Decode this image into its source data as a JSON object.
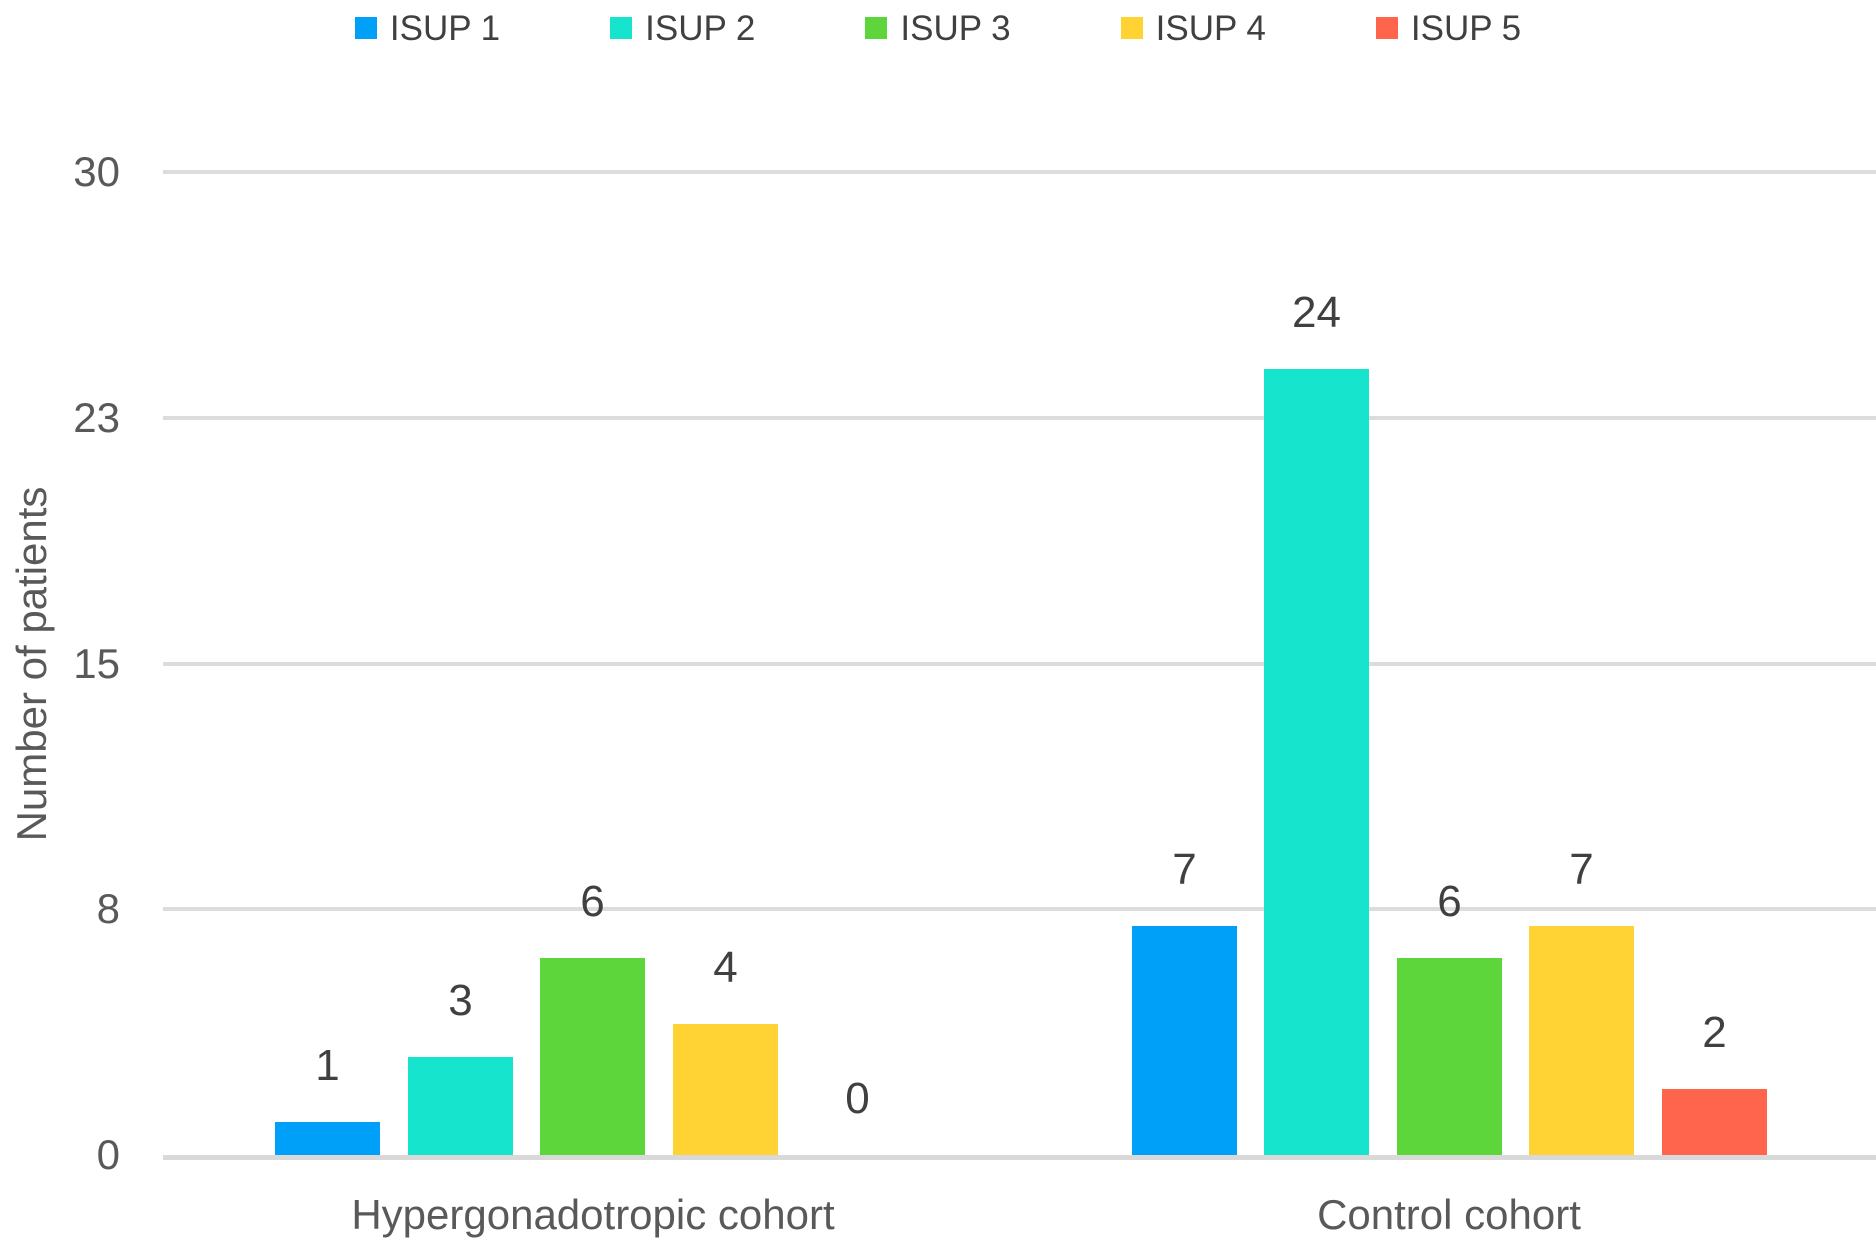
{
  "chart_data": {
    "type": "bar",
    "title": "",
    "xlabel": "",
    "ylabel": "Number of patients",
    "categories": [
      "Hypergonadotropic cohort",
      "Control cohort"
    ],
    "series": [
      {
        "name": "ISUP 1",
        "color": "#00A0F8",
        "values": [
          1,
          7
        ]
      },
      {
        "name": "ISUP 2",
        "color": "#16E4CC",
        "values": [
          3,
          24
        ]
      },
      {
        "name": "ISUP 3",
        "color": "#5CD63A",
        "values": [
          6,
          6
        ]
      },
      {
        "name": "ISUP 4",
        "color": "#FFD334",
        "values": [
          4,
          7
        ]
      },
      {
        "name": "ISUP 5",
        "color": "#FF654C",
        "values": [
          0,
          2
        ]
      }
    ],
    "data_labels": [
      [
        "1",
        "3",
        "6",
        "4",
        "0"
      ],
      [
        "7",
        "24",
        "6",
        "7",
        "2"
      ]
    ],
    "ylim": [
      0,
      30
    ],
    "y_ticks": [
      {
        "value": 0,
        "label": "0"
      },
      {
        "value": 7.5,
        "label": "8"
      },
      {
        "value": 15,
        "label": "15"
      },
      {
        "value": 22.5,
        "label": "23"
      },
      {
        "value": 30,
        "label": "30"
      }
    ],
    "grid": true,
    "legend_position": "top",
    "styles": {
      "gridline_color": "#DCDCDC",
      "axis_line_color": "#D9D9D9",
      "tick_label_color": "#595959",
      "data_label_color": "#404040",
      "legend_text_color": "#404040",
      "category_label_color": "#595959",
      "background": "#FFFFFF"
    }
  }
}
